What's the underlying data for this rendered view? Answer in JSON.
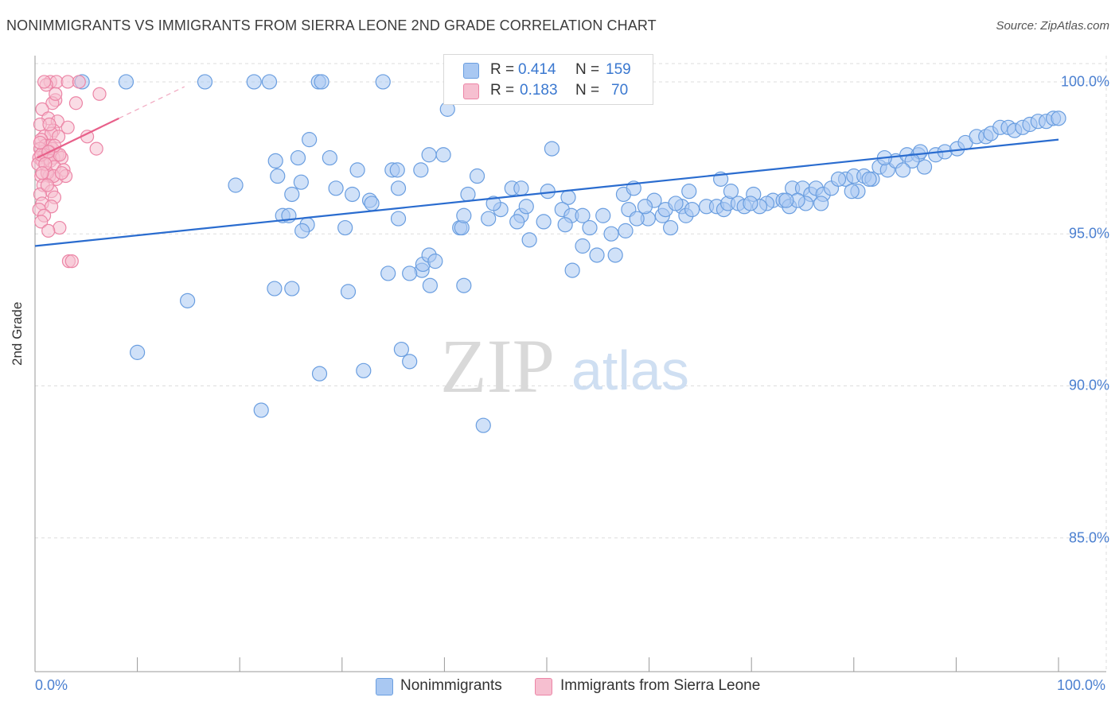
{
  "title": "NONIMMIGRANTS VS IMMIGRANTS FROM SIERRA LEONE 2ND GRADE CORRELATION CHART",
  "source": "Source: ZipAtlas.com",
  "watermark": {
    "zip": "ZIP",
    "atlas": "atlas"
  },
  "colors": {
    "blue_fill": "#a9c8f2",
    "blue_stroke": "#6a9ee0",
    "blue_line": "#2a6ccf",
    "pink_fill": "#f6bfd0",
    "pink_stroke": "#ec85a6",
    "pink_line": "#e8608a",
    "tick_text": "#4a7fd0",
    "grid": "#dddddd"
  },
  "legend": {
    "series1": {
      "r_label": "R =",
      "r_value": "0.414",
      "n_label": "N =",
      "n_value": "159"
    },
    "series2": {
      "r_label": "R =",
      "r_value": "0.183",
      "n_label": "N =",
      "n_value": "70"
    }
  },
  "chart_data": {
    "type": "scatter",
    "title": "NONIMMIGRANTS VS IMMIGRANTS FROM SIERRA LEONE 2ND GRADE CORRELATION CHART",
    "xlabel": "",
    "ylabel": "2nd Grade",
    "xlim": [
      0,
      100
    ],
    "ylim": [
      80.6,
      100.6
    ],
    "x_tick_labels": [
      "0.0%",
      "100.0%"
    ],
    "y_ticks": [
      85,
      90,
      95,
      100
    ],
    "y_tick_labels": [
      "85.0%",
      "90.0%",
      "95.0%",
      "100.0%"
    ],
    "grid": true,
    "legend_position": "bottom-center",
    "series": [
      {
        "name": "Nonimmigrants",
        "r": 0.414,
        "n": 159,
        "trend": {
          "x": [
            0,
            100
          ],
          "y": [
            94.6,
            98.1
          ]
        },
        "points": [
          [
            4.6,
            100
          ],
          [
            8.9,
            100
          ],
          [
            16.6,
            100
          ],
          [
            21.4,
            100
          ],
          [
            22.9,
            100
          ],
          [
            27.7,
            100
          ],
          [
            28,
            100
          ],
          [
            34,
            100
          ],
          [
            40.3,
            99.1
          ],
          [
            26.8,
            98.1
          ],
          [
            23.5,
            97.4
          ],
          [
            25.7,
            97.5
          ],
          [
            28.8,
            97.5
          ],
          [
            31.5,
            97.1
          ],
          [
            34.9,
            97.1
          ],
          [
            35.4,
            97.1
          ],
          [
            37.7,
            97.1
          ],
          [
            38.5,
            97.6
          ],
          [
            39.9,
            97.6
          ],
          [
            43.2,
            96.9
          ],
          [
            50.5,
            97.8
          ],
          [
            23.7,
            96.9
          ],
          [
            26,
            96.7
          ],
          [
            25.1,
            96.3
          ],
          [
            32.7,
            96.1
          ],
          [
            35.5,
            96.5
          ],
          [
            42.3,
            96.3
          ],
          [
            46.6,
            96.5
          ],
          [
            47.5,
            96.5
          ],
          [
            50.1,
            96.4
          ],
          [
            52.1,
            96.2
          ],
          [
            57.5,
            96.3
          ],
          [
            58.5,
            96.5
          ],
          [
            24.2,
            95.6
          ],
          [
            24.8,
            95.6
          ],
          [
            26.6,
            95.3
          ],
          [
            26.1,
            95.1
          ],
          [
            30.3,
            95.2
          ],
          [
            35.5,
            95.5
          ],
          [
            41.5,
            95.2
          ],
          [
            41.7,
            95.2
          ],
          [
            41.9,
            95.6
          ],
          [
            44.3,
            95.5
          ],
          [
            47.5,
            95.6
          ],
          [
            48.3,
            94.8
          ],
          [
            49.7,
            95.4
          ],
          [
            51.5,
            95.8
          ],
          [
            52.4,
            95.6
          ],
          [
            53.5,
            95.6
          ],
          [
            55.5,
            95.6
          ],
          [
            54.2,
            95.2
          ],
          [
            56.3,
            95.0
          ],
          [
            58.0,
            95.8
          ],
          [
            59.9,
            95.5
          ],
          [
            61.3,
            95.6
          ],
          [
            61.6,
            95.8
          ],
          [
            62.1,
            95.2
          ],
          [
            63.2,
            95.9
          ],
          [
            63.6,
            95.6
          ],
          [
            64.2,
            95.8
          ],
          [
            65.6,
            95.9
          ],
          [
            66.6,
            95.9
          ],
          [
            67.3,
            95.8
          ],
          [
            67.7,
            96.0
          ],
          [
            68.7,
            96.0
          ],
          [
            69.3,
            95.9
          ],
          [
            70.2,
            96.3
          ],
          [
            72.1,
            96.1
          ],
          [
            73.1,
            96.1
          ],
          [
            73.7,
            95.9
          ],
          [
            74.0,
            96.5
          ],
          [
            75.0,
            96.5
          ],
          [
            75.8,
            96.3
          ],
          [
            76.3,
            96.5
          ],
          [
            77.0,
            96.3
          ],
          [
            77.8,
            96.5
          ],
          [
            79.2,
            96.8
          ],
          [
            80,
            96.9
          ],
          [
            80.4,
            96.4
          ],
          [
            81.0,
            96.9
          ],
          [
            81.8,
            96.8
          ],
          [
            82.5,
            97.2
          ],
          [
            83.3,
            97.1
          ],
          [
            84.1,
            97.4
          ],
          [
            85.2,
            97.6
          ],
          [
            86.3,
            97.6
          ],
          [
            86.9,
            97.2
          ],
          [
            88.0,
            97.6
          ],
          [
            88.9,
            97.7
          ],
          [
            90.1,
            97.8
          ],
          [
            90.9,
            98.0
          ],
          [
            92.0,
            98.2
          ],
          [
            92.9,
            98.2
          ],
          [
            93.4,
            98.3
          ],
          [
            94.3,
            98.5
          ],
          [
            95.1,
            98.5
          ],
          [
            95.7,
            98.4
          ],
          [
            96.5,
            98.5
          ],
          [
            97.2,
            98.6
          ],
          [
            98.0,
            98.7
          ],
          [
            98.8,
            98.7
          ],
          [
            99.5,
            98.8
          ],
          [
            100,
            98.8
          ],
          [
            86.5,
            97.7
          ],
          [
            85.7,
            97.4
          ],
          [
            84.8,
            97.1
          ],
          [
            83.0,
            97.5
          ],
          [
            81.5,
            96.8
          ],
          [
            79.8,
            96.4
          ],
          [
            78.5,
            96.8
          ],
          [
            76.8,
            96.0
          ],
          [
            75.3,
            96.0
          ],
          [
            74.5,
            96.1
          ],
          [
            73.4,
            96.1
          ],
          [
            71.5,
            96.0
          ],
          [
            70.8,
            95.9
          ],
          [
            69.9,
            96.0
          ],
          [
            68.0,
            96.4
          ],
          [
            67.0,
            96.8
          ],
          [
            63.9,
            96.4
          ],
          [
            62.6,
            96.0
          ],
          [
            60.5,
            96.1
          ],
          [
            59.6,
            95.9
          ],
          [
            58.8,
            95.5
          ],
          [
            57.7,
            95.1
          ],
          [
            56.7,
            94.3
          ],
          [
            54.9,
            94.3
          ],
          [
            53.5,
            94.6
          ],
          [
            52.5,
            93.8
          ],
          [
            51.8,
            95.3
          ],
          [
            48.0,
            95.9
          ],
          [
            47.1,
            95.4
          ],
          [
            45.5,
            95.8
          ],
          [
            44.8,
            96.0
          ],
          [
            32.9,
            96.0
          ],
          [
            31.0,
            96.3
          ],
          [
            29.4,
            96.5
          ],
          [
            19.6,
            96.6
          ],
          [
            37.8,
            93.8
          ],
          [
            36.6,
            93.7
          ],
          [
            34.5,
            93.7
          ],
          [
            37.9,
            94.0
          ],
          [
            38.5,
            94.3
          ],
          [
            39.1,
            94.1
          ],
          [
            41.9,
            93.3
          ],
          [
            38.6,
            93.3
          ],
          [
            30.6,
            93.1
          ],
          [
            25.1,
            93.2
          ],
          [
            23.4,
            93.2
          ],
          [
            14.9,
            92.8
          ],
          [
            10.0,
            91.1
          ],
          [
            35.8,
            91.2
          ],
          [
            36.6,
            90.8
          ],
          [
            32.1,
            90.5
          ],
          [
            27.8,
            90.4
          ],
          [
            22.1,
            89.2
          ],
          [
            43.8,
            88.7
          ]
        ]
      },
      {
        "name": "Immigrants from Sierra Leone",
        "r": 0.183,
        "n": 70,
        "trend": {
          "x": [
            0.2,
            8.2
          ],
          "y": [
            97.5,
            98.8
          ]
        },
        "points": [
          [
            1.5,
            100
          ],
          [
            2.1,
            100
          ],
          [
            3.2,
            100
          ],
          [
            4.3,
            100
          ],
          [
            1.1,
            99.9
          ],
          [
            2.0,
            99.4
          ],
          [
            1.7,
            99.3
          ],
          [
            0.7,
            99.1
          ],
          [
            4.0,
            99.3
          ],
          [
            6.3,
            99.6
          ],
          [
            1.3,
            98.8
          ],
          [
            2.2,
            98.7
          ],
          [
            0.5,
            98.6
          ],
          [
            3.2,
            98.5
          ],
          [
            1.8,
            98.4
          ],
          [
            0.9,
            98.2
          ],
          [
            1.6,
            98.3
          ],
          [
            2.3,
            98.2
          ],
          [
            5.1,
            98.2
          ],
          [
            0.6,
            98.1
          ],
          [
            1.0,
            97.9
          ],
          [
            1.5,
            97.9
          ],
          [
            1.7,
            97.8
          ],
          [
            0.8,
            97.7
          ],
          [
            0.5,
            97.8
          ],
          [
            6.0,
            97.8
          ],
          [
            1.4,
            97.7
          ],
          [
            2.2,
            97.6
          ],
          [
            0.9,
            97.6
          ],
          [
            0.4,
            97.5
          ],
          [
            1.1,
            97.5
          ],
          [
            1.8,
            97.5
          ],
          [
            2.6,
            97.5
          ],
          [
            0.7,
            97.4
          ],
          [
            1.5,
            97.4
          ],
          [
            0.3,
            97.3
          ],
          [
            1.9,
            97.2
          ],
          [
            2.8,
            97.1
          ],
          [
            1.2,
            97.0
          ],
          [
            0.6,
            96.9
          ],
          [
            1.4,
            96.9
          ],
          [
            2.1,
            96.8
          ],
          [
            3.0,
            96.9
          ],
          [
            0.8,
            96.6
          ],
          [
            1.6,
            96.4
          ],
          [
            0.5,
            96.3
          ],
          [
            1.9,
            96.2
          ],
          [
            0.7,
            96.0
          ],
          [
            1.6,
            95.9
          ],
          [
            0.4,
            95.8
          ],
          [
            0.9,
            95.6
          ],
          [
            0.6,
            95.4
          ],
          [
            2.4,
            95.2
          ],
          [
            1.3,
            95.1
          ],
          [
            3.3,
            94.1
          ],
          [
            3.6,
            94.1
          ],
          [
            1.2,
            97.0
          ],
          [
            2.4,
            97.6
          ],
          [
            0.6,
            97.6
          ],
          [
            1.0,
            97.3
          ],
          [
            1.8,
            96.9
          ],
          [
            0.5,
            98.0
          ],
          [
            1.4,
            98.6
          ],
          [
            2.0,
            99.6
          ],
          [
            0.9,
            100
          ],
          [
            1.9,
            97.9
          ],
          [
            1.2,
            96.6
          ],
          [
            0.7,
            97.0
          ],
          [
            1.3,
            97.7
          ],
          [
            2.6,
            97.0
          ]
        ]
      }
    ]
  }
}
